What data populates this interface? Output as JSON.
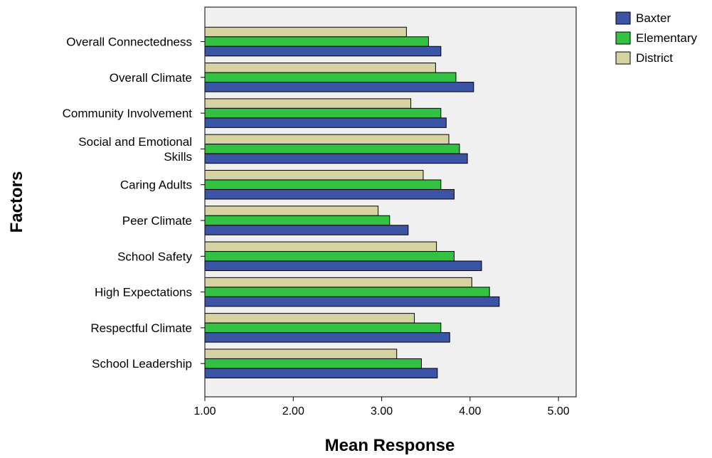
{
  "chart_data": {
    "type": "bar",
    "orientation": "horizontal",
    "xlabel": "Mean Response",
    "ylabel": "Factors",
    "xlim": [
      1.0,
      5.2
    ],
    "xticks": [
      "1.00",
      "2.00",
      "3.00",
      "4.00",
      "5.00"
    ],
    "xtick_values": [
      1,
      2,
      3,
      4,
      5
    ],
    "categories": [
      [
        "Overall Connectedness"
      ],
      [
        "Overall Climate"
      ],
      [
        "Community Involvement"
      ],
      [
        "Social and Emotional",
        "Skills"
      ],
      [
        "Caring Adults"
      ],
      [
        "Peer Climate"
      ],
      [
        "School Safety"
      ],
      [
        "High Expectations"
      ],
      [
        "Respectful Climate"
      ],
      [
        "School Leadership"
      ]
    ],
    "series": [
      {
        "name": "District",
        "color": "#d6d2a2",
        "values": [
          3.28,
          3.61,
          3.33,
          3.76,
          3.47,
          2.96,
          3.62,
          4.02,
          3.37,
          3.17
        ]
      },
      {
        "name": "Elementary",
        "color": "#33c142",
        "values": [
          3.53,
          3.84,
          3.67,
          3.88,
          3.67,
          3.09,
          3.82,
          4.22,
          3.67,
          3.45
        ]
      },
      {
        "name": "Baxter",
        "color": "#3b54a6",
        "values": [
          3.67,
          4.04,
          3.73,
          3.97,
          3.82,
          3.3,
          4.13,
          4.33,
          3.77,
          3.63
        ]
      }
    ],
    "legend": {
      "position": "top-right",
      "order": [
        "Baxter",
        "Elementary",
        "District"
      ]
    },
    "grid": false,
    "plot_background": "#f0f0f0"
  }
}
